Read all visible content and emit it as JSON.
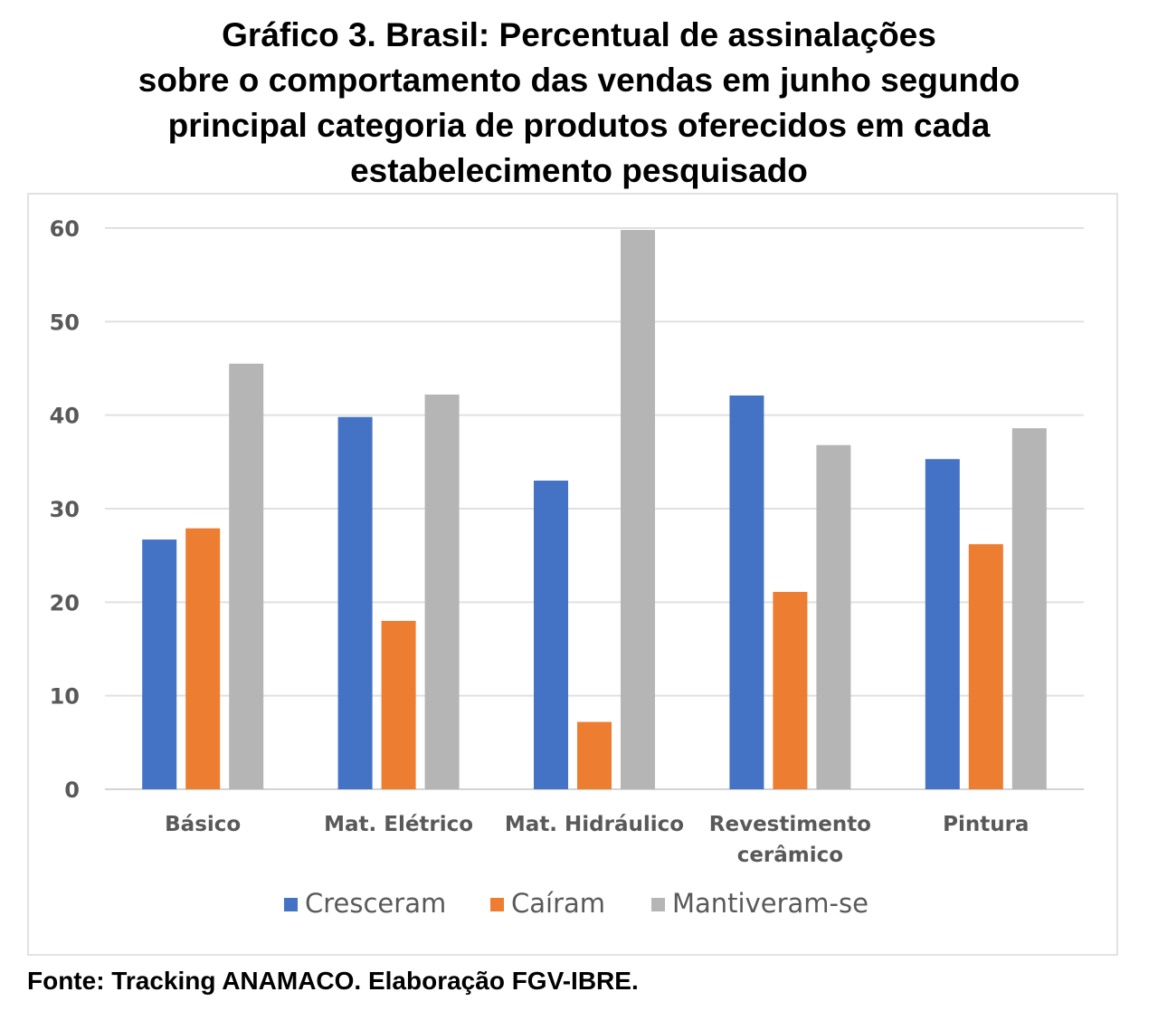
{
  "title": {
    "lines": [
      "Gráfico 3. Brasil: Percentual de assinalações",
      "sobre o comportamento das vendas em junho segundo",
      "principal categoria de produtos oferecidos em cada",
      "estabelecimento pesquisado"
    ]
  },
  "source": "Fonte: Tracking ANAMACO. Elaboração FGV-IBRE.",
  "chart_data": {
    "type": "bar",
    "title": "Gráfico 3. Brasil: Percentual de assinalações sobre o comportamento das vendas em junho segundo principal categoria de produtos oferecidos em cada estabelecimento pesquisado",
    "categories": [
      [
        "Básico"
      ],
      [
        "Mat. Elétrico"
      ],
      [
        "Mat. Hidráulico"
      ],
      [
        "Revestimento",
        "cerâmico"
      ],
      [
        "Pintura"
      ]
    ],
    "series": [
      {
        "name": "Cresceram",
        "color": "#4472c4",
        "values": [
          26.7,
          39.8,
          33.0,
          42.1,
          35.3
        ]
      },
      {
        "name": "Caíram",
        "color": "#ed7d31",
        "values": [
          27.9,
          18.0,
          7.2,
          21.1,
          26.2
        ]
      },
      {
        "name": "Mantiveram-se",
        "color": "#b5b5b5",
        "values": [
          45.5,
          42.2,
          59.8,
          36.8,
          38.6
        ]
      }
    ],
    "ylim": [
      0,
      60
    ],
    "yticks": [
      0,
      10,
      20,
      30,
      40,
      50,
      60
    ],
    "xlabel": "",
    "ylabel": "",
    "grid": true,
    "legend": "bottom-center"
  }
}
